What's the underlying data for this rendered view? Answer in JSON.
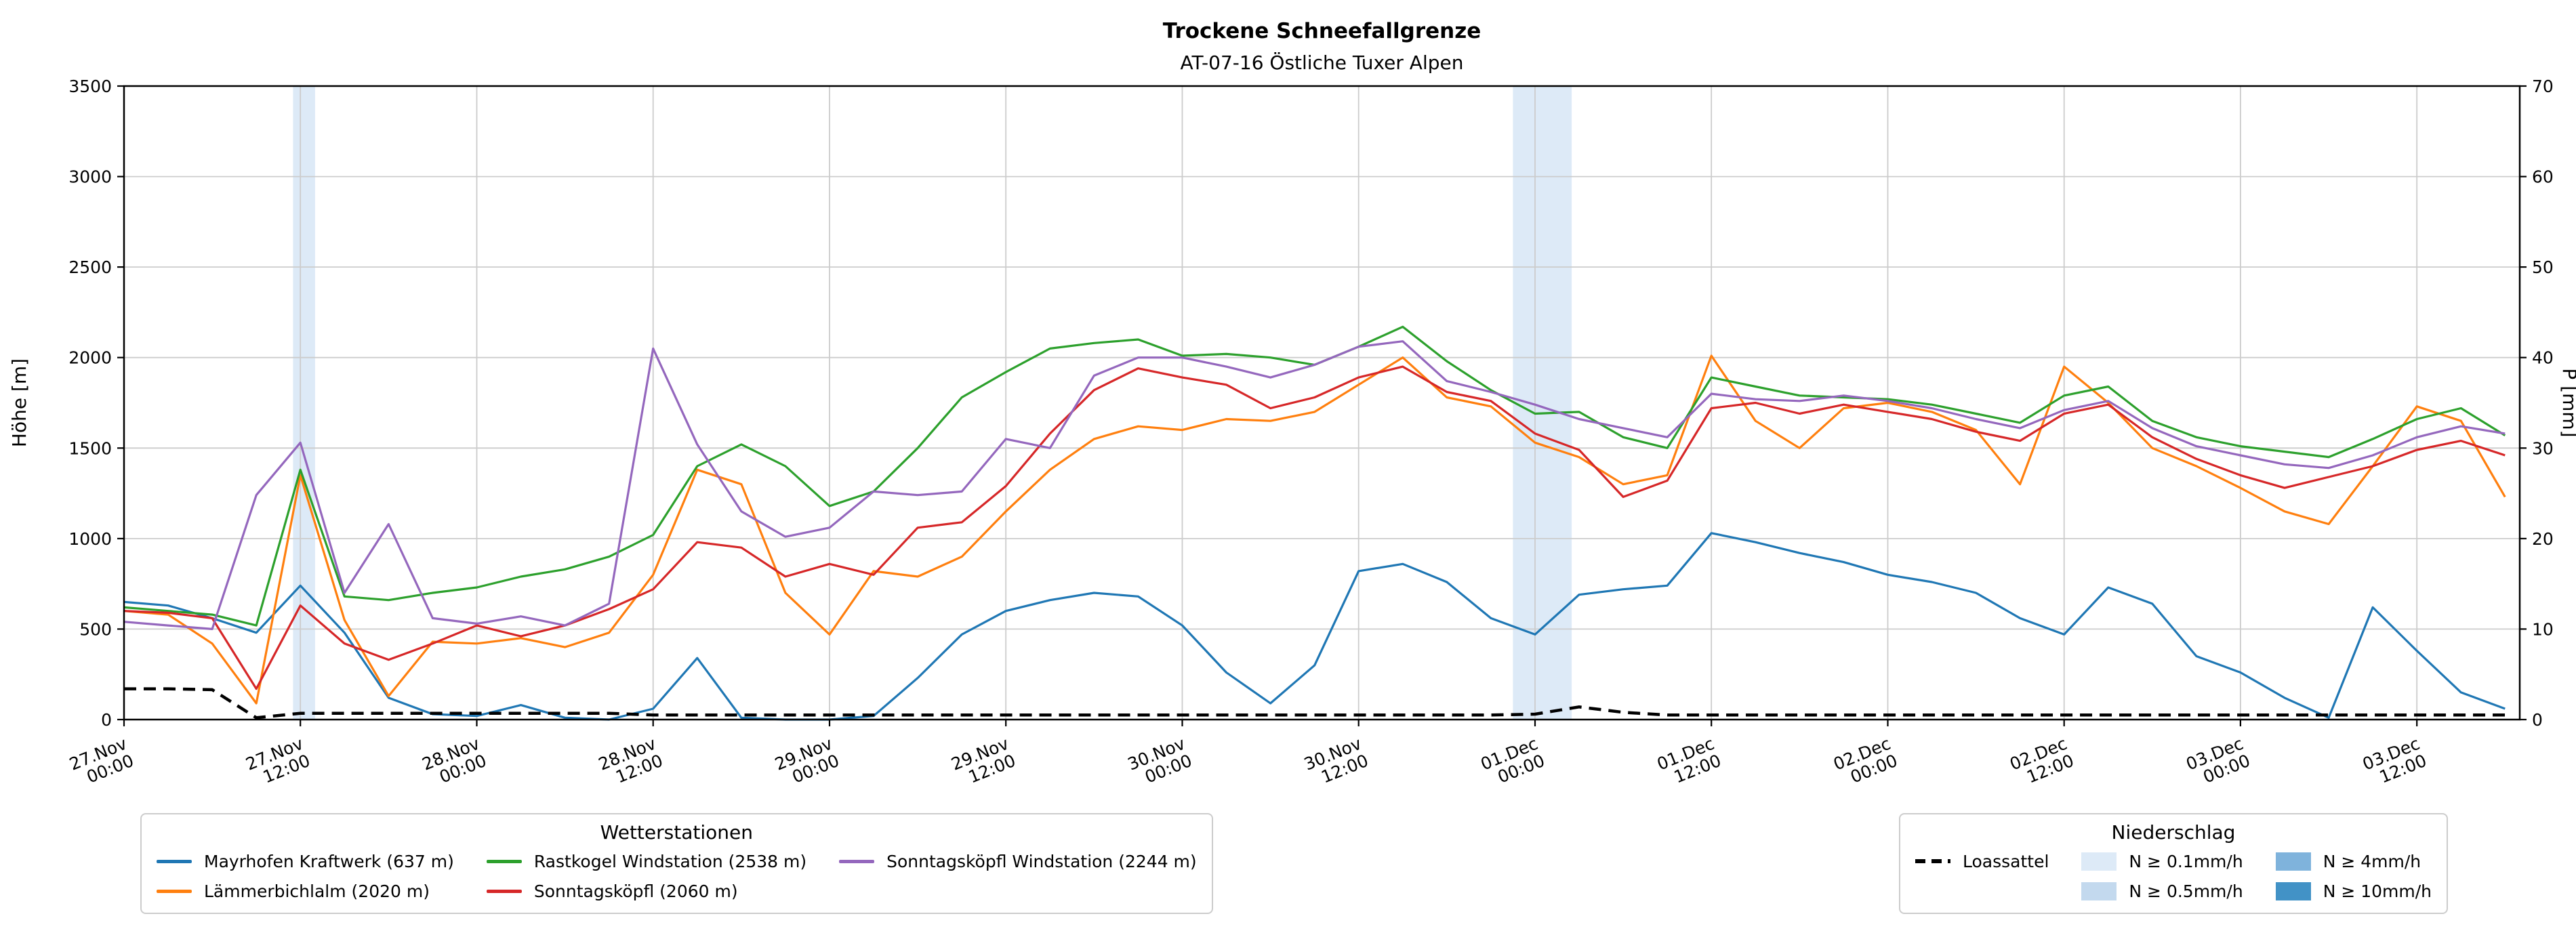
{
  "chart_data": {
    "type": "line",
    "title": "Trockene Schneefallgrenze",
    "subtitle": "AT-07-16 Östliche Tuxer Alpen",
    "ylabel_left": "Höhe [m]",
    "ylabel_right": "P [mm]",
    "ylim_left": [
      0,
      3500
    ],
    "ylim_right": [
      0,
      70
    ],
    "yticks_left": [
      0,
      500,
      1000,
      1500,
      2000,
      2500,
      3000,
      3500
    ],
    "yticks_right": [
      0,
      10,
      20,
      30,
      40,
      50,
      60,
      70
    ],
    "x_range_hours": [
      0,
      163
    ],
    "xticks": [
      {
        "hour": 0,
        "date": "27.Nov",
        "time": "00:00"
      },
      {
        "hour": 12,
        "date": "27.Nov",
        "time": "12:00"
      },
      {
        "hour": 24,
        "date": "28.Nov",
        "time": "00:00"
      },
      {
        "hour": 36,
        "date": "28.Nov",
        "time": "12:00"
      },
      {
        "hour": 48,
        "date": "29.Nov",
        "time": "00:00"
      },
      {
        "hour": 60,
        "date": "29.Nov",
        "time": "12:00"
      },
      {
        "hour": 72,
        "date": "30.Nov",
        "time": "00:00"
      },
      {
        "hour": 84,
        "date": "30.Nov",
        "time": "12:00"
      },
      {
        "hour": 96,
        "date": "01.Dec",
        "time": "00:00"
      },
      {
        "hour": 108,
        "date": "01.Dec",
        "time": "12:00"
      },
      {
        "hour": 120,
        "date": "02.Dec",
        "time": "00:00"
      },
      {
        "hour": 132,
        "date": "02.Dec",
        "time": "12:00"
      },
      {
        "hour": 144,
        "date": "03.Dec",
        "time": "00:00"
      },
      {
        "hour": 156,
        "date": "03.Dec",
        "time": "12:00"
      }
    ],
    "x_hours": [
      0,
      3,
      6,
      9,
      12,
      15,
      18,
      21,
      24,
      27,
      30,
      33,
      36,
      39,
      42,
      45,
      48,
      51,
      54,
      57,
      60,
      63,
      66,
      69,
      72,
      75,
      78,
      81,
      84,
      87,
      90,
      93,
      96,
      99,
      102,
      105,
      108,
      111,
      114,
      117,
      120,
      123,
      126,
      129,
      132,
      135,
      138,
      141,
      144,
      147,
      150,
      153,
      156,
      159,
      162
    ],
    "series": [
      {
        "name": "Mayrhofen Kraftwerk (637 m)",
        "color": "#1f77b4",
        "style": "solid",
        "values": [
          650,
          630,
          560,
          480,
          740,
          480,
          120,
          30,
          20,
          80,
          10,
          0,
          60,
          340,
          10,
          0,
          0,
          20,
          230,
          470,
          600,
          660,
          700,
          680,
          520,
          260,
          90,
          300,
          820,
          860,
          760,
          560,
          470,
          690,
          720,
          740,
          1030,
          980,
          920,
          870,
          800,
          760,
          700,
          560,
          470,
          730,
          640,
          350,
          260,
          120,
          10,
          620,
          380,
          150,
          60
        ]
      },
      {
        "name": "Lämmerbichlalm (2020 m)",
        "color": "#ff7f0e",
        "style": "solid",
        "values": [
          600,
          580,
          420,
          90,
          1350,
          550,
          130,
          430,
          420,
          450,
          400,
          480,
          800,
          1380,
          1300,
          700,
          470,
          820,
          790,
          900,
          1150,
          1380,
          1550,
          1620,
          1600,
          1660,
          1650,
          1700,
          1850,
          2000,
          1780,
          1730,
          1530,
          1450,
          1300,
          1350,
          2010,
          1650,
          1500,
          1720,
          1750,
          1700,
          1600,
          1300,
          1950,
          1750,
          1500,
          1400,
          1280,
          1150,
          1080,
          1400,
          1730,
          1650,
          1230
        ]
      },
      {
        "name": "Rastkogel Windstation (2538 m)",
        "color": "#2ca02c",
        "style": "solid",
        "values": [
          620,
          600,
          580,
          520,
          1380,
          680,
          660,
          700,
          730,
          790,
          830,
          900,
          1020,
          1400,
          1520,
          1400,
          1180,
          1260,
          1500,
          1780,
          1920,
          2050,
          2080,
          2100,
          2010,
          2020,
          2000,
          1960,
          2060,
          2170,
          1980,
          1820,
          1690,
          1700,
          1560,
          1500,
          1890,
          1840,
          1790,
          1780,
          1770,
          1740,
          1690,
          1640,
          1790,
          1840,
          1650,
          1560,
          1510,
          1480,
          1450,
          1550,
          1660,
          1720,
          1570
        ]
      },
      {
        "name": "Sonntagsköpfl (2060 m)",
        "color": "#d62728",
        "style": "solid",
        "values": [
          600,
          590,
          560,
          170,
          630,
          420,
          330,
          420,
          520,
          460,
          520,
          610,
          720,
          980,
          950,
          790,
          860,
          800,
          1060,
          1090,
          1290,
          1580,
          1820,
          1940,
          1890,
          1850,
          1720,
          1780,
          1890,
          1950,
          1810,
          1760,
          1580,
          1490,
          1230,
          1320,
          1720,
          1750,
          1690,
          1740,
          1700,
          1660,
          1590,
          1540,
          1690,
          1740,
          1560,
          1440,
          1350,
          1280,
          1340,
          1400,
          1490,
          1540,
          1460
        ]
      },
      {
        "name": "Sonntagsköpfl Windstation (2244 m)",
        "color": "#9467bd",
        "style": "solid",
        "values": [
          540,
          520,
          500,
          1240,
          1530,
          700,
          1080,
          560,
          530,
          570,
          520,
          640,
          2050,
          1520,
          1150,
          1010,
          1060,
          1260,
          1240,
          1260,
          1550,
          1500,
          1900,
          2000,
          2000,
          1950,
          1890,
          1960,
          2060,
          2090,
          1870,
          1810,
          1740,
          1660,
          1610,
          1560,
          1800,
          1770,
          1760,
          1790,
          1760,
          1720,
          1660,
          1610,
          1710,
          1760,
          1610,
          1510,
          1460,
          1410,
          1390,
          1460,
          1560,
          1620,
          1580
        ]
      },
      {
        "name": "Loassattel",
        "color": "#000000",
        "style": "dashed",
        "values": [
          170,
          170,
          165,
          10,
          35,
          35,
          35,
          35,
          35,
          35,
          35,
          35,
          25,
          25,
          25,
          25,
          25,
          25,
          25,
          25,
          25,
          25,
          25,
          25,
          25,
          25,
          25,
          25,
          25,
          25,
          25,
          25,
          30,
          70,
          40,
          25,
          25,
          25,
          25,
          25,
          25,
          25,
          25,
          25,
          25,
          25,
          25,
          25,
          25,
          25,
          25,
          25,
          25,
          25,
          25
        ]
      }
    ],
    "precip_bands": [
      {
        "start_hour": 11.5,
        "end_hour": 13.0,
        "level": "N ≥ 0.1mm/h",
        "color": "#ddeaf7"
      },
      {
        "start_hour": 94.5,
        "end_hour": 98.5,
        "level": "N ≥ 0.1mm/h",
        "color": "#ddeaf7"
      }
    ],
    "grid_color": "#cccccc"
  },
  "legends": {
    "stations": {
      "title": "Wetterstationen",
      "items": [
        {
          "label": "Mayrhofen Kraftwerk (637 m)",
          "color": "#1f77b4",
          "type": "line"
        },
        {
          "label": "Lämmerbichlalm (2020 m)",
          "color": "#ff7f0e",
          "type": "line"
        },
        {
          "label": "Rastkogel Windstation (2538 m)",
          "color": "#2ca02c",
          "type": "line"
        },
        {
          "label": "Sonntagsköpfl (2060 m)",
          "color": "#d62728",
          "type": "line"
        },
        {
          "label": "Sonntagsköpfl Windstation (2244 m)",
          "color": "#9467bd",
          "type": "line"
        }
      ]
    },
    "precip": {
      "title": "Niederschlag",
      "items": [
        {
          "label": "Loassattel",
          "color": "#000000",
          "type": "dashed-line"
        },
        {
          "label": "",
          "type": "spacer"
        },
        {
          "label": "N ≥ 0.1mm/h",
          "color": "#ddeaf7",
          "type": "patch"
        },
        {
          "label": "N ≥ 0.5mm/h",
          "color": "#c3d9ee",
          "type": "patch"
        },
        {
          "label": "N ≥ 4mm/h",
          "color": "#7fb3dc",
          "type": "patch"
        },
        {
          "label": "N ≥ 10mm/h",
          "color": "#4292c6",
          "type": "patch"
        }
      ]
    }
  }
}
